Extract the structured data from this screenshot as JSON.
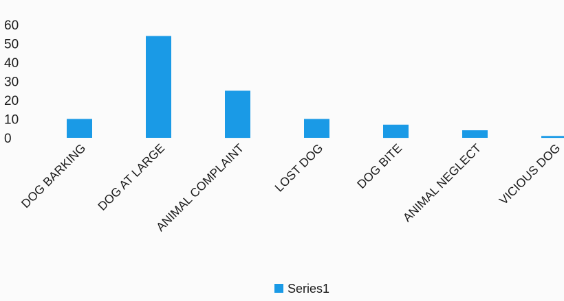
{
  "chart_data": {
    "type": "bar",
    "title": "",
    "xlabel": "",
    "ylabel": "",
    "categories": [
      "DOG BARKING",
      "DOG AT LARGE",
      "ANIMAL COMPLAINT",
      "LOST DOG",
      "DOG BITE",
      "ANIMAL NEGLECT",
      "VICIOUS DOG"
    ],
    "series": [
      {
        "name": "Series1",
        "values": [
          10,
          54,
          25,
          10,
          7,
          4,
          1
        ],
        "color": "#1a9ae6"
      }
    ],
    "ylim": [
      0,
      60
    ],
    "yticks": [
      0,
      10,
      20,
      30,
      40,
      50,
      60
    ],
    "grid": false,
    "legend_position": "bottom"
  }
}
